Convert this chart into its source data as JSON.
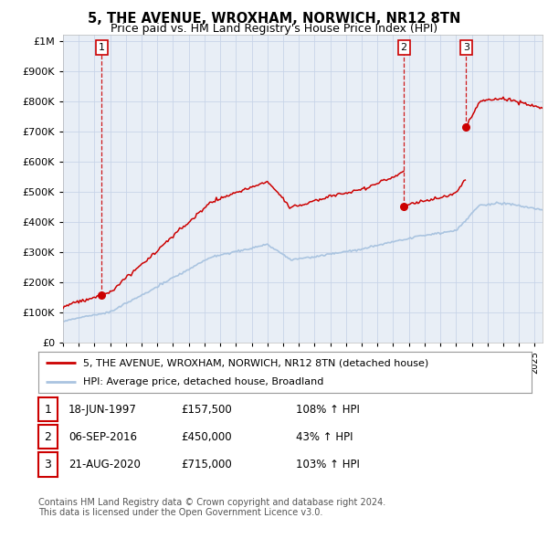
{
  "title": "5, THE AVENUE, WROXHAM, NORWICH, NR12 8TN",
  "subtitle": "Price paid vs. HM Land Registry's House Price Index (HPI)",
  "ytick_values": [
    0,
    100000,
    200000,
    300000,
    400000,
    500000,
    600000,
    700000,
    800000,
    900000,
    1000000
  ],
  "ylim": [
    0,
    1020000
  ],
  "xlim_start": 1995.0,
  "xlim_end": 2025.5,
  "sale_dates": [
    1997.46,
    2016.68,
    2020.64
  ],
  "sale_prices": [
    157500,
    450000,
    715000
  ],
  "sale_labels": [
    "1",
    "2",
    "3"
  ],
  "hpi_line_color": "#aac4e0",
  "price_line_color": "#cc0000",
  "sale_dot_color": "#cc0000",
  "grid_color": "#c8d4e8",
  "background_color": "#e8eef6",
  "legend_entry1": "5, THE AVENUE, WROXHAM, NORWICH, NR12 8TN (detached house)",
  "legend_entry2": "HPI: Average price, detached house, Broadland",
  "table_rows": [
    {
      "num": "1",
      "date": "18-JUN-1997",
      "price": "£157,500",
      "pct": "108% ↑ HPI"
    },
    {
      "num": "2",
      "date": "06-SEP-2016",
      "price": "£450,000",
      "pct": "43% ↑ HPI"
    },
    {
      "num": "3",
      "date": "21-AUG-2020",
      "price": "£715,000",
      "pct": "103% ↑ HPI"
    }
  ],
  "footer1": "Contains HM Land Registry data © Crown copyright and database right 2024.",
  "footer2": "This data is licensed under the Open Government Licence v3.0."
}
